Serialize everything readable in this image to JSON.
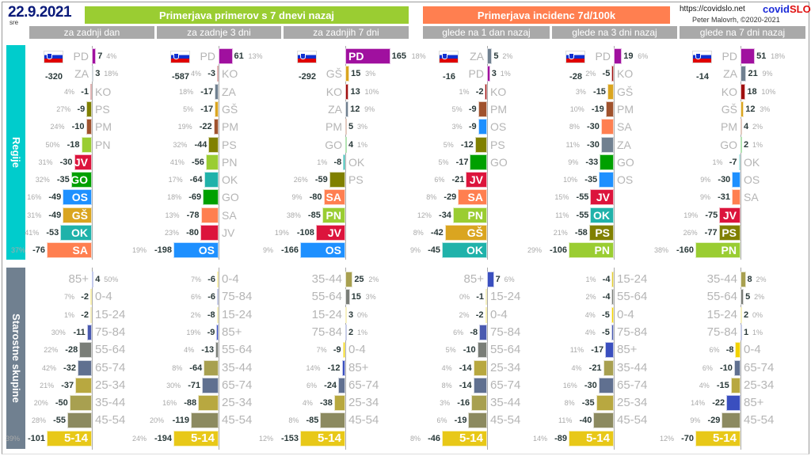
{
  "header": {
    "date": "22.9.2021",
    "weekday": "sre",
    "group1": "Primerjava primerov s 7 dnevi nazaj",
    "group2": "Primerjava incidenc 7d/100k",
    "url": "https://covidslo.net",
    "brand_a": "covid",
    "brand_b": "SLO",
    "author": "Peter Malovrh, ©2020-2021"
  },
  "sections": {
    "regions": "Regije",
    "ages": "Starostne skupine"
  },
  "colors": {
    "PD": "#a0109f",
    "ZA": "#708090",
    "KO": "#a01010",
    "PS": "#808000",
    "PM": "#a0522d",
    "PN": "#9acd32",
    "JV": "#dc143c",
    "GO": "#00a000",
    "OS": "#1e90ff",
    "GŠ": "#daa520",
    "OK": "#20b2aa",
    "SA": "#ff7f50",
    "85+": "#3a4fbf",
    "0-4": "#f2d200",
    "15-24": "#e2cc30",
    "75-84": "#4a5ab0",
    "55-64": "#7a7e78",
    "65-74": "#607090",
    "25-34": "#b8a840",
    "35-44": "#a8a050",
    "45-54": "#8c8a60",
    "5-14": "#e8c818"
  },
  "chart_data": [
    {
      "type": "bar",
      "title": "za zadnji dan",
      "total": "-320",
      "regions": [
        [
          "PD",
          7,
          "4%",
          0
        ],
        [
          "ZA",
          3,
          "18%",
          0
        ],
        [
          "KO",
          -1,
          "4%",
          0
        ],
        [
          "PS",
          -9,
          "27%",
          0
        ],
        [
          "PM",
          -10,
          "24%",
          0
        ],
        [
          "PN",
          -18,
          "50%",
          0
        ],
        [
          "JV",
          -30,
          "31%",
          1
        ],
        [
          "GO",
          -35,
          "32%",
          1
        ],
        [
          "OS",
          -49,
          "16%",
          1
        ],
        [
          "GŠ",
          -49,
          "31%",
          1
        ],
        [
          "OK",
          -53,
          "41%",
          1
        ],
        [
          "SA",
          -76,
          "37%",
          1
        ]
      ],
      "ages": [
        [
          "85+",
          4,
          "50%",
          0
        ],
        [
          "0-4",
          -2,
          "7%",
          0
        ],
        [
          "15-24",
          -2,
          "1%",
          0
        ],
        [
          "75-84",
          -11,
          "30%",
          0
        ],
        [
          "55-64",
          -28,
          "22%",
          0
        ],
        [
          "65-74",
          -32,
          "42%",
          0
        ],
        [
          "25-34",
          -37,
          "21%",
          0
        ],
        [
          "35-44",
          -50,
          "20%",
          0
        ],
        [
          "45-54",
          -55,
          "28%",
          0
        ],
        [
          "5-14",
          -101,
          "39%",
          1
        ]
      ]
    },
    {
      "type": "bar",
      "title": "za zadnje 3 dni",
      "total": "-587",
      "regions": [
        [
          "PD",
          61,
          "13%",
          0
        ],
        [
          "KO",
          -3,
          "4%",
          0
        ],
        [
          "ZA",
          -17,
          "18%",
          0
        ],
        [
          "GŠ",
          -17,
          "5%",
          0
        ],
        [
          "PM",
          -22,
          "19%",
          0
        ],
        [
          "PS",
          -44,
          "32%",
          0
        ],
        [
          "PN",
          -56,
          "41%",
          0
        ],
        [
          "OK",
          -64,
          "17%",
          0
        ],
        [
          "GO",
          -69,
          "18%",
          0
        ],
        [
          "SA",
          -78,
          "13%",
          0
        ],
        [
          "JV",
          -80,
          "23%",
          0
        ],
        [
          "OS",
          -198,
          "19%",
          1
        ]
      ],
      "ages": [
        [
          "0-4",
          -6,
          "7%",
          0
        ],
        [
          "75-84",
          -6,
          "6%",
          0
        ],
        [
          "15-24",
          -8,
          "2%",
          0
        ],
        [
          "85+",
          -9,
          "19%",
          0
        ],
        [
          "55-64",
          -13,
          "4%",
          0
        ],
        [
          "35-44",
          -64,
          "8%",
          0
        ],
        [
          "65-74",
          -71,
          "30%",
          0
        ],
        [
          "25-34",
          -88,
          "16%",
          0
        ],
        [
          "45-54",
          -119,
          "20%",
          0
        ],
        [
          "5-14",
          -194,
          "24%",
          1
        ]
      ]
    },
    {
      "type": "bar",
      "title": "za zadnjih 7 dni",
      "total": "-292",
      "regions": [
        [
          "PD",
          165,
          "18%",
          1
        ],
        [
          "GŠ",
          15,
          "3%",
          0
        ],
        [
          "KO",
          13,
          "10%",
          0
        ],
        [
          "ZA",
          12,
          "9%",
          0
        ],
        [
          "PM",
          5,
          "3%",
          0
        ],
        [
          "GO",
          4,
          "1%",
          0
        ],
        [
          "OK",
          -8,
          "1%",
          0
        ],
        [
          "PS",
          -59,
          "26%",
          0
        ],
        [
          "SA",
          -80,
          "9%",
          1
        ],
        [
          "PN",
          -85,
          "38%",
          1
        ],
        [
          "JV",
          -108,
          "19%",
          1
        ],
        [
          "OS",
          -166,
          "9%",
          1
        ]
      ],
      "ages": [
        [
          "35-44",
          25,
          "2%",
          0
        ],
        [
          "55-64",
          15,
          "3%",
          0
        ],
        [
          "15-24",
          3,
          "0%",
          0
        ],
        [
          "75-84",
          2,
          "1%",
          0
        ],
        [
          "0-4",
          -9,
          "7%",
          0
        ],
        [
          "85+",
          -12,
          "14%",
          0
        ],
        [
          "65-74",
          -24,
          "6%",
          0
        ],
        [
          "25-34",
          -38,
          "4%",
          0
        ],
        [
          "45-54",
          -85,
          "8%",
          0
        ],
        [
          "5-14",
          -153,
          "12%",
          1
        ]
      ]
    },
    {
      "type": "bar",
      "title": "glede na 1 dan nazaj",
      "total": "-16",
      "regions": [
        [
          "ZA",
          5,
          "2%",
          0
        ],
        [
          "PD",
          3,
          "1%",
          0
        ],
        [
          "KO",
          -2,
          "1%",
          0
        ],
        [
          "PM",
          -9,
          "5%",
          0
        ],
        [
          "OS",
          -9,
          "3%",
          0
        ],
        [
          "PS",
          -12,
          "5%",
          0
        ],
        [
          "GO",
          -17,
          "5%",
          0
        ],
        [
          "JV",
          -21,
          "6%",
          1
        ],
        [
          "SA",
          -29,
          "8%",
          1
        ],
        [
          "PN",
          -34,
          "12%",
          1
        ],
        [
          "GŠ",
          -42,
          "8%",
          1
        ],
        [
          "OK",
          -45,
          "9%",
          1
        ]
      ],
      "ages": [
        [
          "85+",
          7,
          "6%",
          0
        ],
        [
          "15-24",
          -1,
          "0%",
          0
        ],
        [
          "0-4",
          -2,
          "2%",
          0
        ],
        [
          "75-84",
          -8,
          "6%",
          0
        ],
        [
          "55-64",
          -10,
          "5%",
          0
        ],
        [
          "25-34",
          -14,
          "4%",
          0
        ],
        [
          "65-74",
          -14,
          "8%",
          0
        ],
        [
          "35-44",
          -16,
          "3%",
          0
        ],
        [
          "45-54",
          -19,
          "6%",
          0
        ],
        [
          "5-14",
          -46,
          "8%",
          1
        ]
      ]
    },
    {
      "type": "bar",
      "title": "glede na 3 dni nazaj",
      "total": "-28",
      "regions": [
        [
          "PD",
          19,
          "6%",
          0
        ],
        [
          "KO",
          -5,
          "2%",
          0
        ],
        [
          "GŠ",
          -15,
          "3%",
          0
        ],
        [
          "PM",
          -19,
          "10%",
          0
        ],
        [
          "SA",
          -30,
          "8%",
          0
        ],
        [
          "ZA",
          -30,
          "11%",
          0
        ],
        [
          "GO",
          -33,
          "9%",
          0
        ],
        [
          "OS",
          -35,
          "10%",
          0
        ],
        [
          "JV",
          -55,
          "15%",
          1
        ],
        [
          "OK",
          -55,
          "11%",
          1
        ],
        [
          "PS",
          -58,
          "21%",
          1
        ],
        [
          "PN",
          -106,
          "29%",
          1
        ]
      ],
      "ages": [
        [
          "15-24",
          -4,
          "1%",
          0
        ],
        [
          "55-64",
          -4,
          "2%",
          0
        ],
        [
          "0-4",
          -5,
          "4%",
          0
        ],
        [
          "75-84",
          -5,
          "4%",
          0
        ],
        [
          "85+",
          -17,
          "11%",
          0
        ],
        [
          "35-44",
          -21,
          "4%",
          0
        ],
        [
          "65-74",
          -30,
          "16%",
          0
        ],
        [
          "25-34",
          -35,
          "8%",
          0
        ],
        [
          "45-54",
          -40,
          "11%",
          0
        ],
        [
          "5-14",
          -89,
          "14%",
          1
        ]
      ]
    },
    {
      "type": "bar",
      "title": "glede na 7 dni nazaj",
      "total": "-14",
      "regions": [
        [
          "PD",
          51,
          "18%",
          0
        ],
        [
          "ZA",
          21,
          "9%",
          0
        ],
        [
          "KO",
          18,
          "10%",
          0
        ],
        [
          "GŠ",
          12,
          "3%",
          0
        ],
        [
          "PM",
          4,
          "2%",
          0
        ],
        [
          "GO",
          2,
          "1%",
          0
        ],
        [
          "OK",
          -7,
          "1%",
          0
        ],
        [
          "OS",
          -30,
          "9%",
          0
        ],
        [
          "SA",
          -31,
          "9%",
          0
        ],
        [
          "JV",
          -75,
          "19%",
          1
        ],
        [
          "PS",
          -77,
          "26%",
          1
        ],
        [
          "PN",
          -160,
          "38%",
          1
        ]
      ],
      "ages": [
        [
          "35-44",
          8,
          "2%",
          0
        ],
        [
          "55-64",
          5,
          "2%",
          0
        ],
        [
          "15-24",
          2,
          "0%",
          0
        ],
        [
          "75-84",
          1,
          "1%",
          0
        ],
        [
          "0-4",
          -8,
          "6%",
          0
        ],
        [
          "65-74",
          -10,
          "6%",
          0
        ],
        [
          "25-34",
          -15,
          "4%",
          0
        ],
        [
          "85+",
          -22,
          "14%",
          0
        ],
        [
          "45-54",
          -29,
          "9%",
          0
        ],
        [
          "5-14",
          -70,
          "12%",
          1
        ]
      ]
    }
  ]
}
